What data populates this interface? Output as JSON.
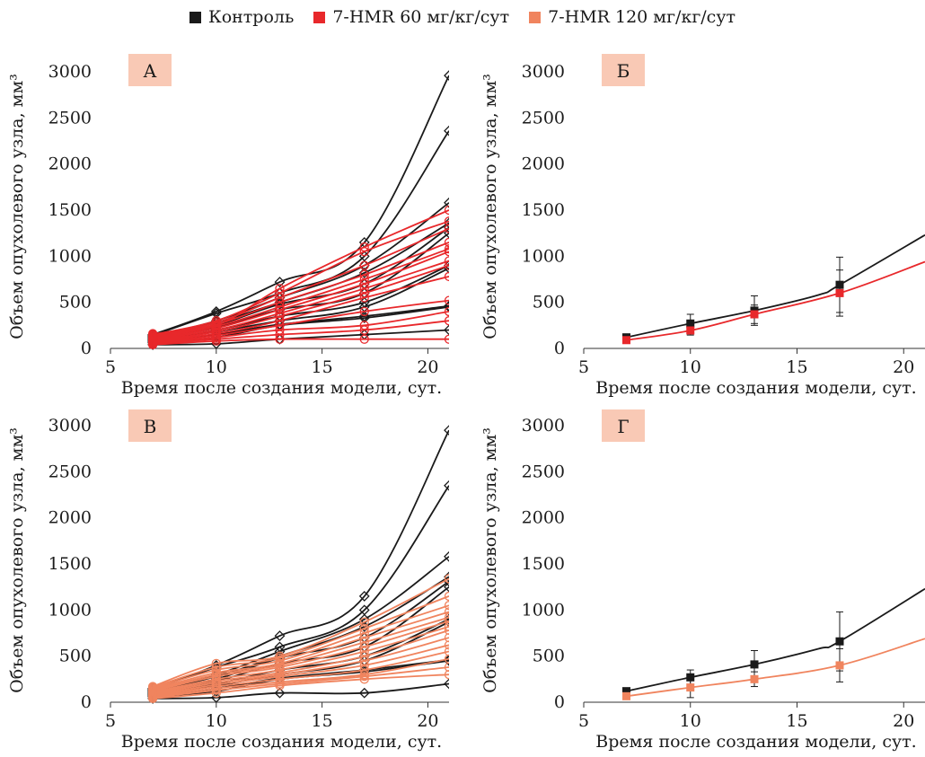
{
  "legend": [
    {
      "label": "Контроль",
      "color": "#1a1a1a"
    },
    {
      "label": "7-HMR 60 мг/кг/сут",
      "color": "#e8282b"
    },
    {
      "label": "7-HMR 120 мг/кг/сут",
      "color": "#f0845e"
    }
  ],
  "chart_data": [
    {
      "panel": "А",
      "type": "line",
      "xlabel": "Время после создания модели, сут.",
      "ylabel": "Объем опухолевого узла, мм³",
      "xlim": [
        5,
        21
      ],
      "ylim": [
        0,
        3000
      ],
      "xticks": [
        5,
        10,
        15,
        20
      ],
      "yticks": [
        0,
        500,
        1000,
        1500,
        2000,
        2500,
        3000
      ],
      "x": [
        7,
        10,
        13,
        17,
        21
      ],
      "groups": [
        {
          "group": "Контроль",
          "color": "#1a1a1a",
          "marker": "diamond",
          "individuals": [
            [
              150,
              400,
              720,
              1150,
              2960
            ],
            [
              140,
              380,
              600,
              1000,
              2360
            ],
            [
              130,
              300,
              550,
              900,
              1580
            ],
            [
              120,
              280,
              500,
              820,
              1360
            ],
            [
              110,
              250,
              480,
              700,
              1310
            ],
            [
              100,
              230,
              420,
              600,
              1250
            ],
            [
              90,
              200,
              350,
              500,
              900
            ],
            [
              80,
              180,
              300,
              450,
              870
            ],
            [
              70,
              150,
              260,
              350,
              460
            ],
            [
              60,
              120,
              250,
              330,
              450
            ],
            [
              40,
              50,
              100,
              150,
              200
            ]
          ]
        },
        {
          "group": "7-HMR 60 мг/кг/сут",
          "color": "#e8282b",
          "marker": "circle",
          "individuals": [
            [
              160,
              250,
              650,
              1100,
              1500
            ],
            [
              150,
              300,
              600,
              1050,
              1380
            ],
            [
              140,
              280,
              550,
              900,
              1300
            ],
            [
              130,
              260,
              500,
              800,
              1150
            ],
            [
              120,
              240,
              450,
              750,
              1080
            ],
            [
              110,
              220,
              420,
              700,
              1050
            ],
            [
              100,
              200,
              380,
              650,
              950
            ],
            [
              90,
              180,
              350,
              600,
              900
            ],
            [
              80,
              160,
              300,
              550,
              780
            ],
            [
              70,
              140,
              250,
              400,
              520
            ],
            [
              60,
              120,
              200,
              250,
              400
            ],
            [
              50,
              100,
              150,
              200,
              300
            ],
            [
              40,
              80,
              100,
              100,
              100
            ]
          ]
        }
      ]
    },
    {
      "panel": "Б",
      "type": "line",
      "xlabel": "Время после создания модели, сут.",
      "ylabel": "Объем опухолевого узла, мм³",
      "xlim": [
        5,
        21
      ],
      "ylim": [
        0,
        3000
      ],
      "xticks": [
        5,
        10,
        15,
        20
      ],
      "yticks": [
        0,
        500,
        1000,
        1500,
        2000,
        2500,
        3000
      ],
      "series": [
        {
          "name": "Контроль",
          "color": "#1a1a1a",
          "x": [
            7,
            10,
            13,
            16,
            17,
            21
          ],
          "y": [
            120,
            270,
            410,
            580,
            690,
            1230
          ],
          "points": [
            {
              "x": 7,
              "y": 120,
              "err": 20
            },
            {
              "x": 10,
              "y": 270,
              "err": 100
            },
            {
              "x": 13,
              "y": 410,
              "err": 160
            },
            {
              "x": 17,
              "y": 690,
              "err": 300
            }
          ]
        },
        {
          "name": "7-HMR 60 мг/кг/сут",
          "color": "#e8282b",
          "x": [
            7,
            10,
            13,
            17,
            21
          ],
          "y": [
            90,
            195,
            370,
            600,
            940
          ],
          "points": [
            {
              "x": 7,
              "y": 90,
              "err": 15
            },
            {
              "x": 10,
              "y": 195,
              "err": 50
            },
            {
              "x": 13,
              "y": 370,
              "err": 100
            },
            {
              "x": 17,
              "y": 600,
              "err": 250
            }
          ]
        }
      ]
    },
    {
      "panel": "В",
      "type": "line",
      "xlabel": "Время после создания модели, сут.",
      "ylabel": "Объем опухолевого узла, мм³",
      "xlim": [
        5,
        21
      ],
      "ylim": [
        0,
        3000
      ],
      "xticks": [
        5,
        10,
        15,
        20
      ],
      "yticks": [
        0,
        500,
        1000,
        1500,
        2000,
        2500,
        3000
      ],
      "x": [
        7,
        10,
        13,
        17,
        21
      ],
      "groups": [
        {
          "group": "Контроль",
          "color": "#1a1a1a",
          "marker": "diamond",
          "individuals": [
            [
              150,
              400,
              720,
              1150,
              2950
            ],
            [
              140,
              380,
              600,
              1000,
              2350
            ],
            [
              130,
              300,
              550,
              900,
              1580
            ],
            [
              120,
              280,
              500,
              820,
              1360
            ],
            [
              110,
              250,
              480,
              700,
              1310
            ],
            [
              100,
              230,
              420,
              600,
              1250
            ],
            [
              90,
              200,
              350,
              500,
              900
            ],
            [
              80,
              180,
              300,
              450,
              870
            ],
            [
              70,
              150,
              260,
              350,
              460
            ],
            [
              60,
              120,
              250,
              330,
              450
            ],
            [
              40,
              50,
              100,
              100,
              200
            ]
          ]
        },
        {
          "group": "7-HMR 120 мг/кг/сут",
          "color": "#f0845e",
          "marker": "circle",
          "individuals": [
            [
              170,
              420,
              500,
              870,
              1340
            ],
            [
              160,
              380,
              480,
              800,
              1150
            ],
            [
              150,
              350,
              450,
              750,
              1050
            ],
            [
              140,
              320,
              420,
              700,
              980
            ],
            [
              130,
              300,
              400,
              650,
              920
            ],
            [
              120,
              280,
              380,
              600,
              880
            ],
            [
              110,
              250,
              350,
              550,
              820
            ],
            [
              100,
              230,
              320,
              500,
              780
            ],
            [
              90,
              210,
              300,
              450,
              700
            ],
            [
              80,
              190,
              280,
              400,
              620
            ],
            [
              70,
              170,
              250,
              350,
              550
            ],
            [
              60,
              150,
              220,
              300,
              470
            ],
            [
              50,
              130,
              200,
              280,
              380
            ],
            [
              40,
              100,
              180,
              250,
              300
            ]
          ]
        }
      ]
    },
    {
      "panel": "Г",
      "type": "line",
      "xlabel": "Время после создания модели, сут.",
      "ylabel": "Объем опухолевого узла, мм³",
      "xlim": [
        5,
        21
      ],
      "ylim": [
        0,
        3000
      ],
      "xticks": [
        5,
        10,
        15,
        20
      ],
      "yticks": [
        0,
        500,
        1000,
        1500,
        2000,
        2500,
        3000
      ],
      "series": [
        {
          "name": "Контроль",
          "color": "#1a1a1a",
          "x": [
            7,
            10,
            13,
            16,
            17,
            21
          ],
          "y": [
            120,
            270,
            410,
            580,
            660,
            1230
          ],
          "points": [
            {
              "x": 7,
              "y": 120,
              "err": 20
            },
            {
              "x": 10,
              "y": 270,
              "err": 80
            },
            {
              "x": 13,
              "y": 410,
              "err": 150
            },
            {
              "x": 17,
              "y": 660,
              "err": 320
            }
          ]
        },
        {
          "name": "7-HMR 120 мг/кг/сут",
          "color": "#f0845e",
          "x": [
            7,
            10,
            13,
            17,
            21
          ],
          "y": [
            65,
            160,
            250,
            400,
            690
          ],
          "points": [
            {
              "x": 7,
              "y": 65,
              "err": 15
            },
            {
              "x": 10,
              "y": 160,
              "err": 110
            },
            {
              "x": 13,
              "y": 250,
              "err": 80
            },
            {
              "x": 17,
              "y": 400,
              "err": 180
            }
          ]
        }
      ]
    }
  ]
}
